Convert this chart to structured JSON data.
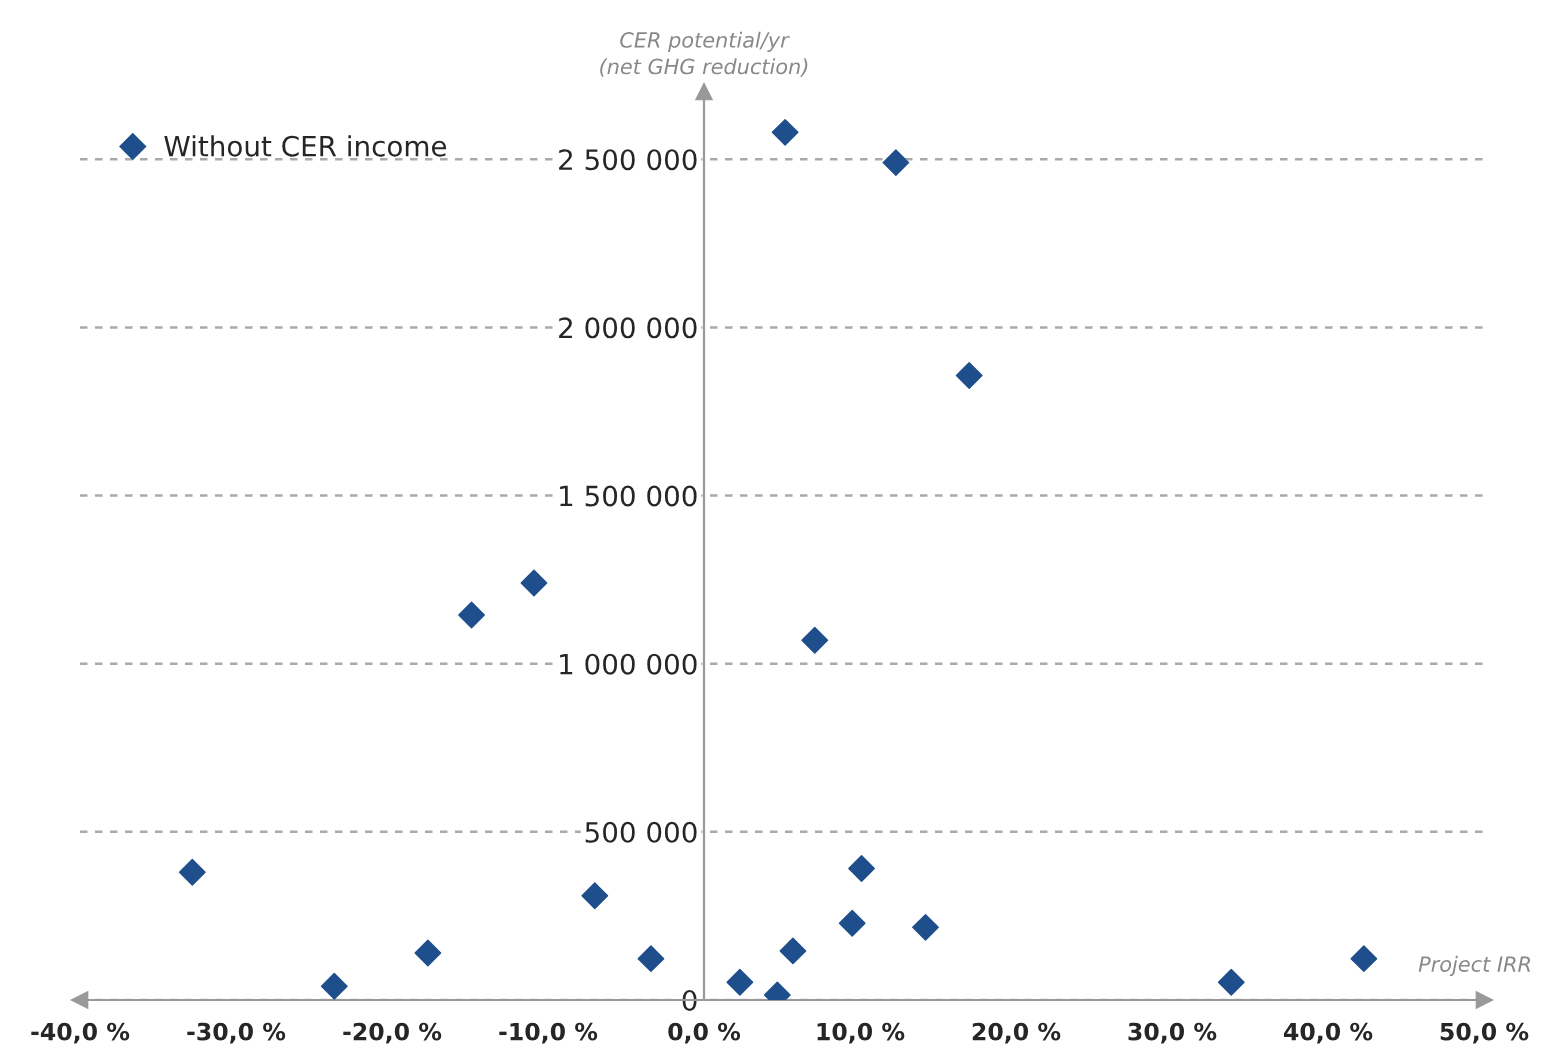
{
  "chart_data": {
    "type": "scatter",
    "xlabel": "Project IRR",
    "ylabel": "CER potential/yr\n(net GHG reduction)",
    "series": [
      {
        "name": "Without CER income",
        "color": "#1f4e8c",
        "marker": "diamond",
        "x": [
          -32.8,
          -23.7,
          -17.7,
          -14.9,
          -10.9,
          -7.0,
          -3.4,
          2.3,
          4.7,
          5.7,
          9.5,
          10.1,
          14.2,
          33.8,
          42.3,
          7.1,
          5.2,
          12.3,
          17.0
        ],
        "values": [
          380000,
          41000,
          140000,
          1145000,
          1240000,
          310000,
          123000,
          53000,
          15000,
          146000,
          228000,
          391000,
          216000,
          53000,
          123000,
          1070000,
          2580000,
          2490000,
          1857000
        ]
      }
    ],
    "xlim": [
      -40,
      50
    ],
    "ylim": [
      0,
      2700000
    ],
    "xticks": [
      {
        "value": -40,
        "label": "-40,0 %"
      },
      {
        "value": -30,
        "label": "-30,0 %"
      },
      {
        "value": -20,
        "label": "-20,0 %"
      },
      {
        "value": -10,
        "label": "-10,0 %"
      },
      {
        "value": 0,
        "label": "0,0 %"
      },
      {
        "value": 10,
        "label": "10,0 %"
      },
      {
        "value": 20,
        "label": "20,0 %"
      },
      {
        "value": 30,
        "label": "30,0 %"
      },
      {
        "value": 40,
        "label": "40,0 %"
      },
      {
        "value": 50,
        "label": "50,0 %"
      }
    ],
    "yticks": [
      0,
      {
        "value": 500000,
        "label": "500 000"
      },
      {
        "value": 1000000,
        "label": "1 000 000"
      },
      {
        "value": 1500000,
        "label": "1 500 000"
      },
      {
        "value": 2000000,
        "label": "2 000 000"
      },
      {
        "value": 2500000,
        "label": "2 500 000"
      }
    ],
    "grid": "y",
    "legend": "top left"
  }
}
